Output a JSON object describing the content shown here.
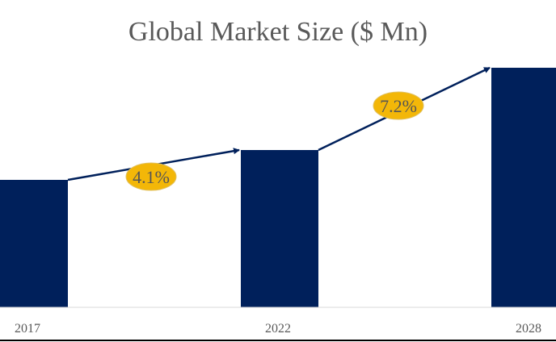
{
  "chart_data": {
    "type": "bar",
    "title": "Global Market Size ($ Mn)",
    "categories": [
      "2017",
      "2022",
      "2028"
    ],
    "values": [
      158,
      195,
      297
    ],
    "ylim": [
      0,
      300
    ],
    "xlabel": "",
    "ylabel": "",
    "grid": false,
    "annotations": [
      {
        "from": "2017",
        "to": "2022",
        "label": "4.1%"
      },
      {
        "from": "2022",
        "to": "2028",
        "label": "7.2%"
      }
    ],
    "colors": {
      "bar": "#00205b",
      "badge": "#f3b708",
      "text": "#595959"
    }
  }
}
